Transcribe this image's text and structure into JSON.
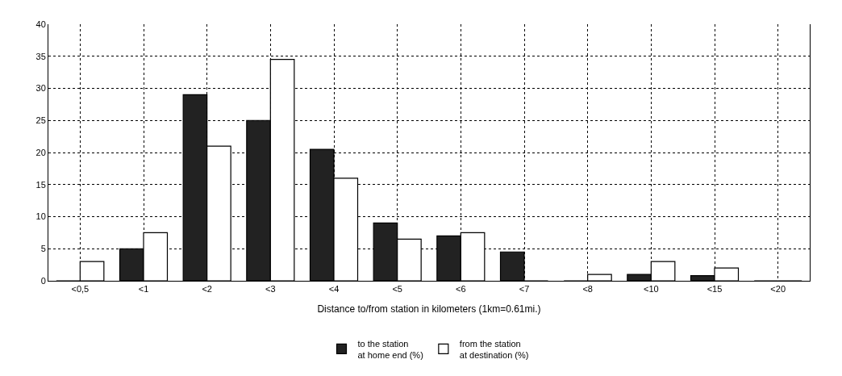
{
  "chart_data": {
    "type": "bar",
    "xlabel": "Distance to/from station in kilometers (1km=0.61mi.)",
    "categories": [
      "<0,5",
      "<1",
      "<2",
      "<3",
      "<4",
      "<5",
      "<6",
      "<7",
      "<8",
      "<10",
      "<15",
      "<20"
    ],
    "series": [
      {
        "name": "to the station\nat home end (%)",
        "color": "#222222",
        "values": [
          0,
          5,
          29,
          25,
          20.5,
          9,
          7,
          4.5,
          0,
          1,
          0.8,
          0
        ]
      },
      {
        "name": "from the station\nat destination (%)",
        "color": "#ffffff",
        "values": [
          3,
          7.5,
          21,
          34.5,
          16,
          6.5,
          7.5,
          0,
          1,
          3,
          2,
          0
        ]
      }
    ],
    "ylim": [
      0,
      40
    ],
    "yticks": [
      0,
      5,
      10,
      15,
      20,
      25,
      30,
      35,
      40
    ],
    "grid": true,
    "legend": "bottom"
  }
}
